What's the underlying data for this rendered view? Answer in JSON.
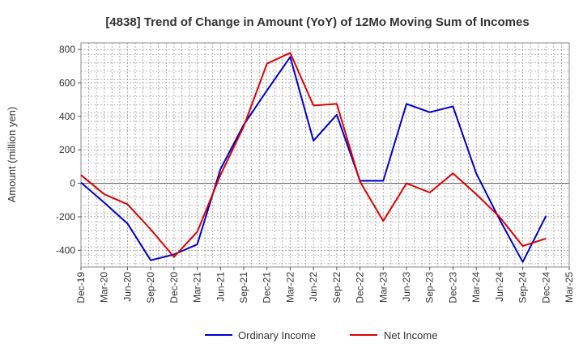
{
  "chart_data": {
    "type": "line",
    "title": "[4838]  Trend of Change in Amount (YoY) of 12Mo Moving Sum of Incomes",
    "ylabel": "Amount (million yen)",
    "xlabel": "",
    "ylim": [
      -500,
      820
    ],
    "yticks": [
      800,
      600,
      400,
      200,
      0,
      -200,
      -400
    ],
    "grid": true,
    "legend_position": "bottom",
    "categories": [
      "Dec-19",
      "Mar-20",
      "Jun-20",
      "Sep-20",
      "Dec-20",
      "Mar-21",
      "Jun-21",
      "Sep-21",
      "Dec-21",
      "Mar-22",
      "Jun-22",
      "Sep-22",
      "Dec-22",
      "Mar-23",
      "Jun-23",
      "Sep-23",
      "Dec-23",
      "Mar-24",
      "Jun-24",
      "Sep-24",
      "Dec-24",
      "Mar-25"
    ],
    "series": [
      {
        "name": "Ordinary Income",
        "color": "#0000cc",
        "values": [
          5,
          -115,
          -240,
          -460,
          -425,
          -365,
          85,
          350,
          555,
          755,
          255,
          410,
          15,
          15,
          475,
          425,
          460,
          60,
          -215,
          -470,
          -195,
          null
        ]
      },
      {
        "name": "Net Income",
        "color": "#dd0000",
        "values": [
          50,
          -65,
          -125,
          -275,
          -440,
          -290,
          50,
          340,
          715,
          780,
          465,
          475,
          10,
          -225,
          0,
          -55,
          60,
          -65,
          -200,
          -375,
          -330,
          null
        ]
      }
    ]
  }
}
